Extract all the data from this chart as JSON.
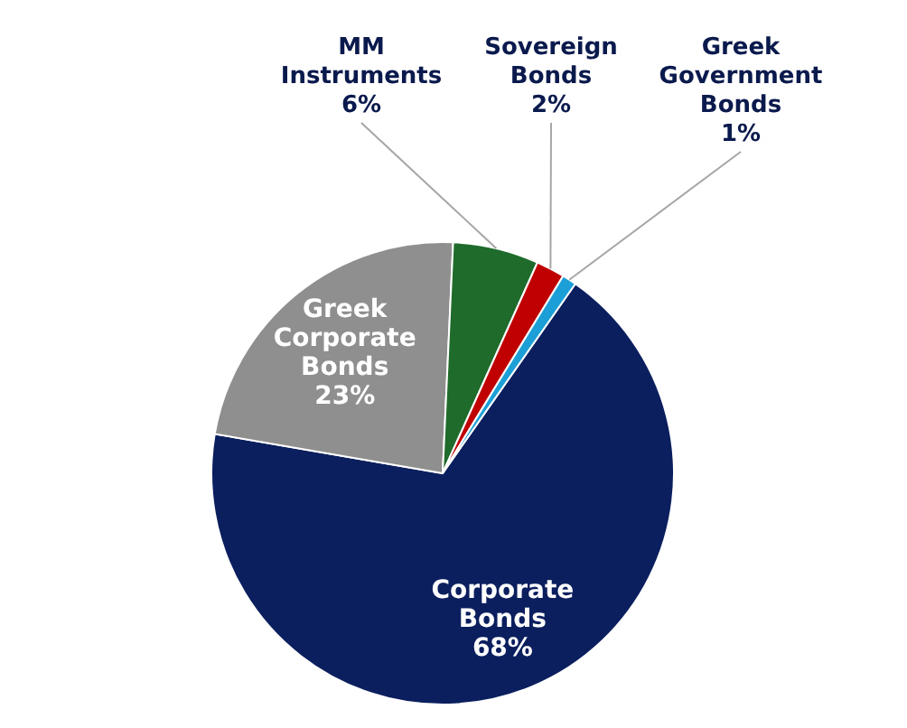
{
  "chart_data": {
    "type": "pie",
    "categories": [
      "Corporate Bonds",
      "Greek Corporate Bonds",
      "MM Instruments",
      "Sovereign Bonds",
      "Greek Government Bonds"
    ],
    "values": [
      68,
      23,
      6,
      2,
      1
    ],
    "value_labels": [
      "68%",
      "23%",
      "6%",
      "2%",
      "1%"
    ],
    "colors": [
      "#0b1f5e",
      "#8f8f8f",
      "#1f6b2b",
      "#c00000",
      "#1b9fd6"
    ]
  }
}
